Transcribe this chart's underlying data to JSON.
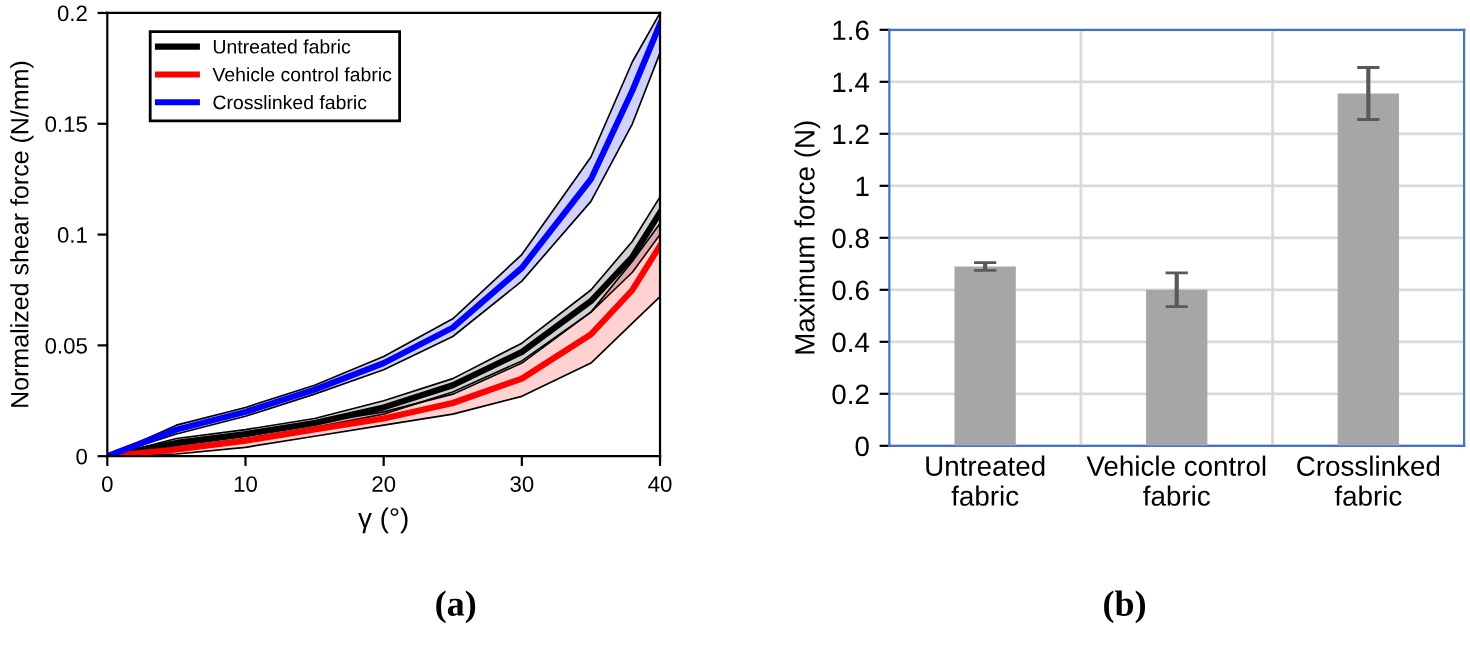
{
  "chart_data": [
    {
      "type": "line",
      "xlabel": "γ (°)",
      "ylabel": "Normalized shear force (N/mm)",
      "annotations": [
        "(a)"
      ],
      "x": [
        0,
        5,
        10,
        15,
        20,
        25,
        30,
        35,
        38,
        40
      ],
      "series": [
        {
          "name": "Untreated fabric",
          "color": "#000000",
          "values": [
            0,
            0.006,
            0.01,
            0.015,
            0.022,
            0.032,
            0.047,
            0.07,
            0.09,
            0.11
          ],
          "lower": [
            0,
            0.004,
            0.008,
            0.013,
            0.019,
            0.029,
            0.043,
            0.065,
            0.083,
            0.1
          ],
          "upper": [
            0,
            0.008,
            0.012,
            0.017,
            0.025,
            0.035,
            0.051,
            0.075,
            0.097,
            0.117
          ]
        },
        {
          "name": "Vehicle control fabric",
          "color": "#ff0000",
          "values": [
            0,
            0.003,
            0.007,
            0.012,
            0.017,
            0.024,
            0.035,
            0.055,
            0.075,
            0.095
          ],
          "lower": [
            0,
            0.001,
            0.004,
            0.009,
            0.014,
            0.019,
            0.027,
            0.042,
            0.06,
            0.072
          ],
          "upper": [
            0,
            0.005,
            0.009,
            0.015,
            0.02,
            0.028,
            0.042,
            0.065,
            0.088,
            0.105
          ]
        },
        {
          "name": "Crosslinked fabric",
          "color": "#0000ff",
          "values": [
            0,
            0.012,
            0.02,
            0.03,
            0.042,
            0.058,
            0.085,
            0.125,
            0.165,
            0.195
          ],
          "lower": [
            0,
            0.01,
            0.018,
            0.028,
            0.039,
            0.054,
            0.079,
            0.115,
            0.15,
            0.182
          ],
          "upper": [
            0,
            0.014,
            0.022,
            0.032,
            0.045,
            0.062,
            0.091,
            0.135,
            0.178,
            0.2
          ]
        }
      ],
      "xlim": [
        0,
        40
      ],
      "ylim": [
        0,
        0.2
      ],
      "xticks": [
        0,
        10,
        20,
        30,
        40
      ],
      "yticks": [
        0,
        0.05,
        0.1,
        0.15,
        0.2
      ],
      "legend": "top left",
      "grid": false
    },
    {
      "type": "bar",
      "ylabel": "Maximum force (N)",
      "annotations": [
        "(b)"
      ],
      "categories": [
        "Untreated\nfabric",
        "Vehicle control\nfabric",
        "Crosslinked\nfabric"
      ],
      "values": [
        0.69,
        0.6,
        1.355
      ],
      "errors": [
        0.015,
        0.065,
        0.1
      ],
      "color": "#a6a6a6",
      "ylim": [
        0,
        1.6
      ],
      "yticks": [
        0,
        0.2,
        0.4,
        0.6,
        0.8,
        1,
        1.2,
        1.4,
        1.6
      ],
      "grid": true
    }
  ]
}
